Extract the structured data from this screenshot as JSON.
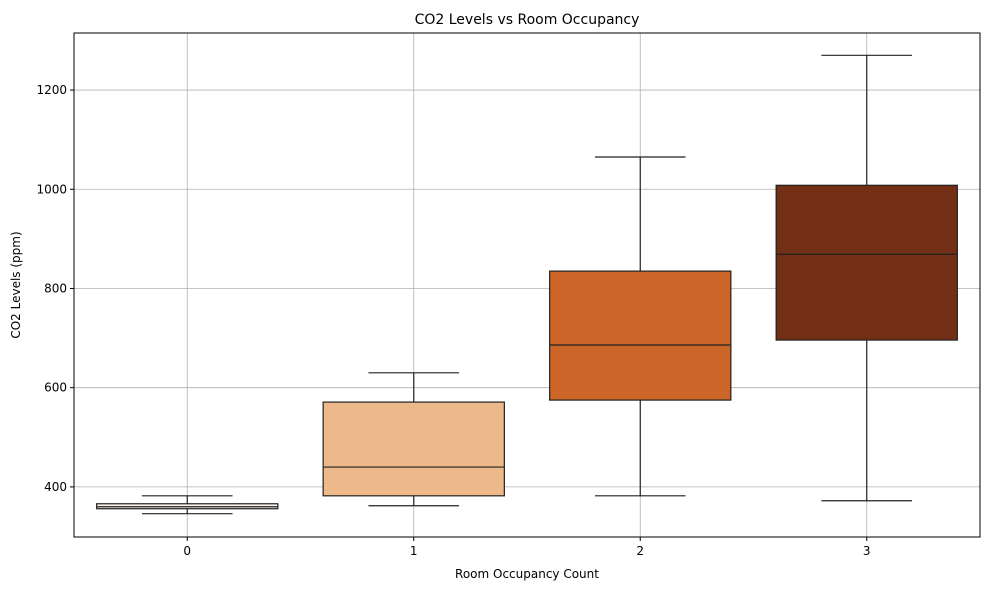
{
  "chart_data": {
    "type": "box",
    "title": "CO2 Levels vs Room Occupancy",
    "xlabel": "Room Occupancy Count",
    "ylabel": "CO2 Levels (ppm)",
    "categories": [
      "0",
      "1",
      "2",
      "3"
    ],
    "ylim": [
      299,
      1315
    ],
    "yticks": [
      400,
      600,
      800,
      1000,
      1200
    ],
    "grid": true,
    "colors": [
      "#fdf3e8",
      "#edb98a",
      "#cc6628",
      "#732f15"
    ],
    "boxes": [
      {
        "whislo": 346,
        "q1": 356,
        "med": 360,
        "q3": 366,
        "whishi": 382
      },
      {
        "whislo": 362,
        "q1": 382,
        "med": 440,
        "q3": 571,
        "whishi": 630
      },
      {
        "whislo": 382,
        "q1": 575,
        "med": 686,
        "q3": 835,
        "whishi": 1065
      },
      {
        "whislo": 372,
        "q1": 696,
        "med": 869,
        "q3": 1008,
        "whishi": 1270
      }
    ]
  }
}
